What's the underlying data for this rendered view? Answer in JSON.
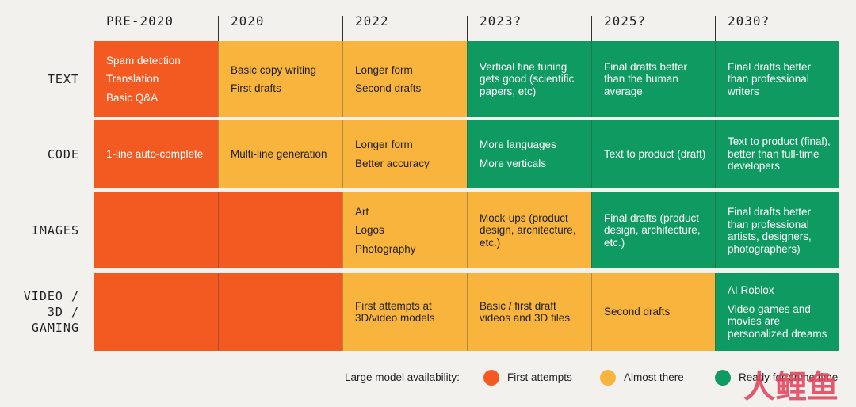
{
  "columns": [
    "PRE-2020",
    "2020",
    "2022",
    "2023?",
    "2025?",
    "2030?"
  ],
  "rows": [
    {
      "label": "TEXT",
      "cells": [
        {
          "color": "orange",
          "items": [
            "Spam detection",
            "Translation",
            "Basic Q&A"
          ]
        },
        {
          "color": "yellow",
          "items": [
            "Basic copy writing",
            "First drafts"
          ]
        },
        {
          "color": "yellow",
          "items": [
            "Longer form",
            "Second drafts"
          ]
        },
        {
          "color": "green",
          "items": [
            "Vertical fine tuning gets good (scientific papers, etc)"
          ]
        },
        {
          "color": "green",
          "items": [
            "Final drafts better than the human average"
          ]
        },
        {
          "color": "green",
          "items": [
            "Final drafts better than professional writers"
          ]
        }
      ]
    },
    {
      "label": "CODE",
      "cells": [
        {
          "color": "orange",
          "items": [
            "1-line auto-complete"
          ]
        },
        {
          "color": "yellow",
          "items": [
            "Multi-line generation"
          ]
        },
        {
          "color": "yellow",
          "items": [
            "Longer form",
            "Better accuracy"
          ]
        },
        {
          "color": "green",
          "items": [
            "More languages",
            "More verticals"
          ]
        },
        {
          "color": "green",
          "items": [
            "Text to product (draft)"
          ]
        },
        {
          "color": "green",
          "items": [
            "Text to product (final), better than full-time developers"
          ]
        }
      ]
    },
    {
      "label": "IMAGES",
      "cells": [
        {
          "color": "orange",
          "items": []
        },
        {
          "color": "orange",
          "items": []
        },
        {
          "color": "yellow",
          "items": [
            "Art",
            "Logos",
            "Photography"
          ]
        },
        {
          "color": "yellow",
          "items": [
            "Mock-ups (product design, architecture, etc.)"
          ]
        },
        {
          "color": "green",
          "items": [
            "Final drafts (product design, architecture, etc.)"
          ]
        },
        {
          "color": "green",
          "items": [
            "Final drafts better than professional artists, designers, photographers)"
          ]
        }
      ]
    },
    {
      "label": "VIDEO /\n3D /\nGAMING",
      "cells": [
        {
          "color": "orange",
          "items": []
        },
        {
          "color": "orange",
          "items": []
        },
        {
          "color": "yellow",
          "items": [
            "First attempts at 3D/video models"
          ]
        },
        {
          "color": "yellow",
          "items": [
            "Basic / first draft videos and 3D files"
          ]
        },
        {
          "color": "yellow",
          "items": [
            "Second drafts"
          ]
        },
        {
          "color": "green",
          "items": [
            "AI Roblox",
            "Video games and movies are personalized dreams"
          ]
        }
      ]
    }
  ],
  "legend": {
    "title": "Large model availability:",
    "items": [
      {
        "label": "First attempts",
        "color": "#f25a22"
      },
      {
        "label": "Almost there",
        "color": "#f8b43d"
      },
      {
        "label": "Ready for prime time",
        "color": "#0e9a61"
      }
    ]
  },
  "watermark": "人鲤鱼",
  "colors": {
    "orange": "#f25a22",
    "yellow": "#f8b43d",
    "green": "#0e9a61"
  }
}
